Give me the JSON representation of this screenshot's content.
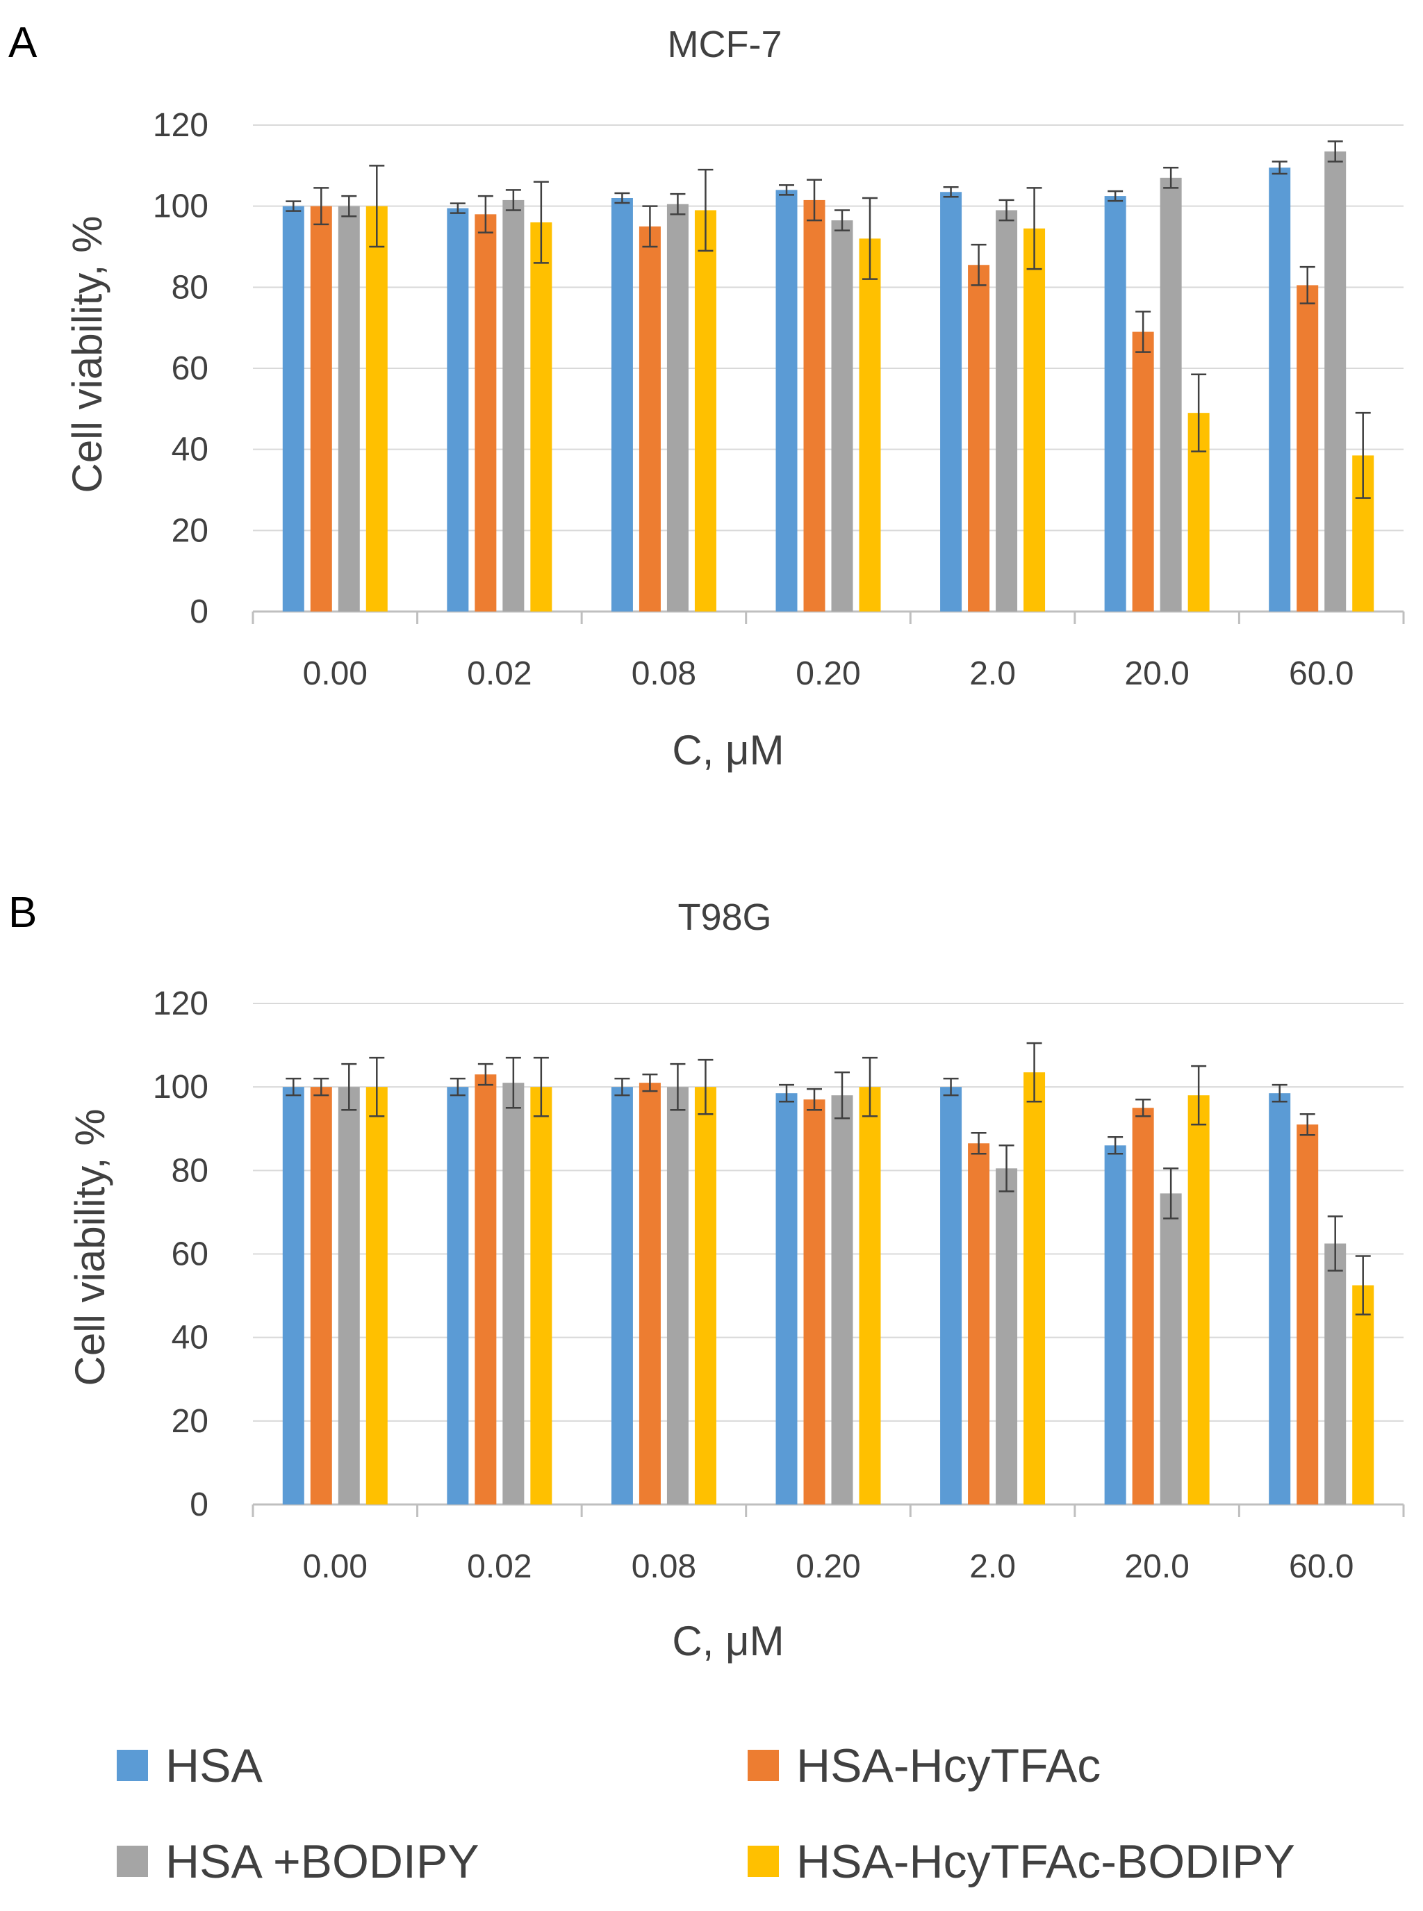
{
  "legend": [
    {
      "name": "HSA",
      "color": "#5B9BD5"
    },
    {
      "name": "HSA-HcyTFAc",
      "color": "#ED7D31"
    },
    {
      "name": "HSA +BODIPY",
      "color": "#A5A5A5"
    },
    {
      "name": "HSA-HcyTFAc-BODIPY",
      "color": "#FFC000"
    }
  ],
  "chart_data": [
    {
      "panel": "A",
      "type": "bar",
      "title": "MCF-7",
      "xlabel": "C, μM",
      "ylabel": "Cell viability, %",
      "ylim": [
        0,
        120
      ],
      "yticks": [
        0,
        20,
        40,
        60,
        80,
        100,
        120
      ],
      "grid": true,
      "legend_position": "bottom",
      "categories": [
        "0.00",
        "0.02",
        "0.08",
        "0.20",
        "2.0",
        "20.0",
        "60.0"
      ],
      "series": [
        {
          "name": "HSA",
          "values": [
            100,
            99.5,
            102,
            104,
            103.5,
            102.5,
            109.5
          ],
          "errors": [
            1.2,
            1.2,
            1.2,
            1.2,
            1.2,
            1.2,
            1.5
          ]
        },
        {
          "name": "HSA-HcyTFAc",
          "values": [
            100,
            98,
            95,
            101.5,
            85.5,
            69,
            80.5
          ],
          "errors": [
            4.5,
            4.5,
            5,
            5,
            5,
            5,
            4.5
          ]
        },
        {
          "name": "HSA +BODIPY",
          "values": [
            100,
            101.5,
            100.5,
            96.5,
            99,
            107,
            113.5
          ],
          "errors": [
            2.5,
            2.5,
            2.5,
            2.5,
            2.5,
            2.5,
            2.5
          ]
        },
        {
          "name": "HSA-HcyTFAc-BODIPY",
          "values": [
            100,
            96,
            99,
            92,
            94.5,
            49,
            38.5
          ],
          "errors": [
            10,
            10,
            10,
            10,
            10,
            9.5,
            10.5
          ]
        }
      ]
    },
    {
      "panel": "B",
      "type": "bar",
      "title": "T98G",
      "xlabel": "C, μM",
      "ylabel": "Cell viability, %",
      "ylim": [
        0,
        120
      ],
      "yticks": [
        0,
        20,
        40,
        60,
        80,
        100,
        120
      ],
      "grid": true,
      "legend_position": "bottom",
      "categories": [
        "0.00",
        "0.02",
        "0.08",
        "0.20",
        "2.0",
        "20.0",
        "60.0"
      ],
      "series": [
        {
          "name": "HSA",
          "values": [
            100,
            100,
            100,
            98.5,
            100,
            86,
            98.5
          ],
          "errors": [
            2,
            2,
            2,
            2,
            2,
            2,
            2
          ]
        },
        {
          "name": "HSA-HcyTFAc",
          "values": [
            100,
            103,
            101,
            97,
            86.5,
            95,
            91
          ],
          "errors": [
            2,
            2.5,
            2,
            2.5,
            2.5,
            2,
            2.5
          ]
        },
        {
          "name": "HSA +BODIPY",
          "values": [
            100,
            101,
            100,
            98,
            80.5,
            74.5,
            62.5
          ],
          "errors": [
            5.5,
            6,
            5.5,
            5.5,
            5.5,
            6,
            6.5
          ]
        },
        {
          "name": "HSA-HcyTFAc-BODIPY",
          "values": [
            100,
            100,
            100,
            100,
            103.5,
            98,
            52.5
          ],
          "errors": [
            7,
            7,
            6.5,
            7,
            7,
            7,
            7
          ]
        }
      ]
    }
  ]
}
